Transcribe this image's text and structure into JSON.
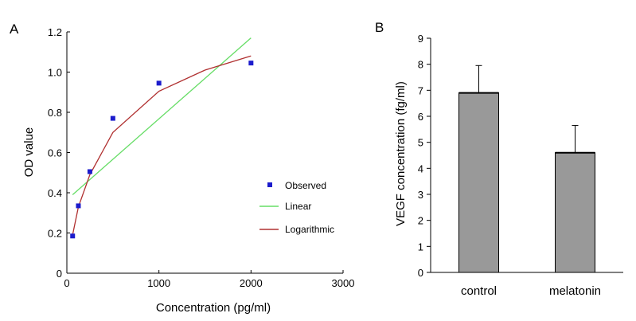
{
  "chart_data": [
    {
      "panel_label": "A",
      "type": "scatter",
      "xlabel": "Concentration (pg/ml)",
      "ylabel": "OD value",
      "xlim": [
        0,
        3000
      ],
      "ylim": [
        0,
        1.2
      ],
      "x_ticks": [
        "0",
        "1000",
        "2000",
        "3000"
      ],
      "y_ticks": [
        "0",
        "0.2",
        "0.4",
        "0.6",
        "0.8",
        "1.0",
        "1.2"
      ],
      "grid": false,
      "legend_position": "right",
      "series": [
        {
          "name": "Observed",
          "type": "scatter",
          "color": "#1c1ccc",
          "points": [
            [
              62.5,
              0.185
            ],
            [
              125,
              0.335
            ],
            [
              250,
              0.505
            ],
            [
              500,
              0.77
            ],
            [
              1000,
              0.945
            ],
            [
              2000,
              1.045
            ]
          ]
        },
        {
          "name": "Linear",
          "type": "line",
          "color": "#66dd66",
          "points": [
            [
              62.5,
              0.39
            ],
            [
              2000,
              1.17
            ]
          ]
        },
        {
          "name": "Logarithmic",
          "type": "line",
          "color": "#b03030",
          "points": [
            [
              62.5,
              0.19
            ],
            [
              125,
              0.33
            ],
            [
              250,
              0.49
            ],
            [
              500,
              0.7
            ],
            [
              1000,
              0.905
            ],
            [
              1500,
              1.01
            ],
            [
              2000,
              1.08
            ]
          ]
        }
      ]
    },
    {
      "panel_label": "B",
      "type": "bar",
      "xlabel": "",
      "ylabel": "VEGF concentration (fg/ml)",
      "ylim": [
        0,
        9
      ],
      "y_ticks": [
        "0",
        "1",
        "2",
        "3",
        "4",
        "5",
        "6",
        "7",
        "8",
        "9"
      ],
      "categories": [
        "control",
        "melatonin"
      ],
      "values": [
        6.9,
        4.6
      ],
      "errors": [
        1.05,
        1.05
      ],
      "bar_color": "#999999",
      "grid": false
    }
  ]
}
